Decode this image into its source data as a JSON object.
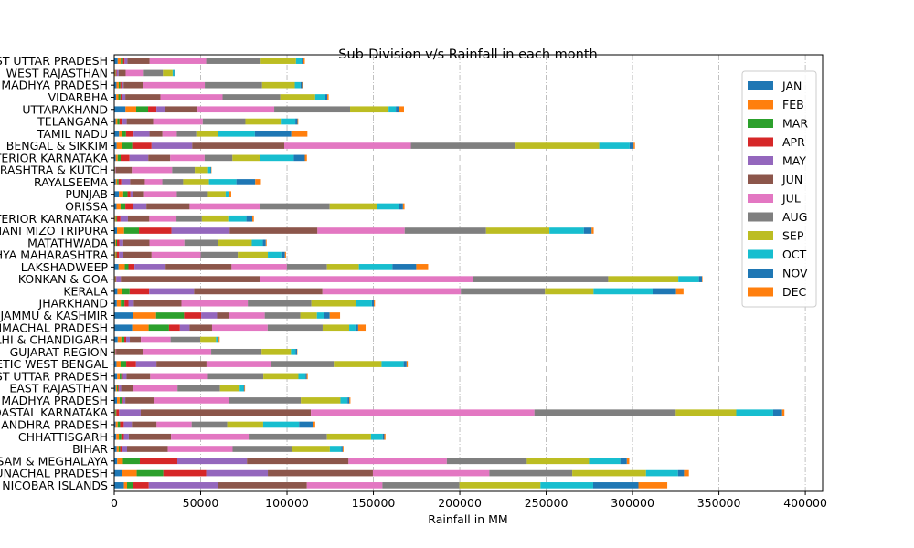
{
  "chart_data": {
    "type": "bar",
    "orientation": "horizontal",
    "stacked": true,
    "title": "Sub-Division v/s Rainfall in each month",
    "xlabel": "Rainfall in MM",
    "ylabel": "",
    "xlim": [
      0,
      410000
    ],
    "xticks": [
      0,
      50000,
      100000,
      150000,
      200000,
      250000,
      300000,
      350000,
      400000
    ],
    "grid": "x-dashdot",
    "legend_position": "top-right",
    "categories": [
      "ANDAMAN & NICOBAR ISLANDS",
      "ARUNACHAL PRADESH",
      "ASSAM & MEGHALAYA",
      "BIHAR",
      "CHHATTISGARH",
      "COASTAL ANDHRA PRADESH",
      "COASTAL KARNATAKA",
      "EAST MADHYA PRADESH",
      "EAST RAJASTHAN",
      "EAST UTTAR PRADESH",
      "GANGETIC WEST BENGAL",
      "GUJARAT REGION",
      "HARYANA DELHI & CHANDIGARH",
      "HIMACHAL PRADESH",
      "JAMMU & KASHMIR",
      "JHARKHAND",
      "KERALA",
      "KONKAN & GOA",
      "LAKSHADWEEP",
      "MADHYA MAHARASHTRA",
      "MATATHWADA",
      "NAGA MANI MIZO TRIPURA",
      "NORTH INTERIOR KARNATAKA",
      "ORISSA",
      "PUNJAB",
      "RAYALSEEMA",
      "SAURASHTRA & KUTCH",
      "SOUTH INTERIOR KARNATAKA",
      "SUB HIMALAYAN WEST BENGAL & SIKKIM",
      "TAMIL NADU",
      "TELANGANA",
      "UTTARAKHAND",
      "VIDARBHA",
      "WEST MADHYA PRADESH",
      "WEST RAJASTHAN",
      "WEST UTTAR PRADESH"
    ],
    "series": [
      {
        "name": "JAN",
        "color": "#1f77b4",
        "values": [
          5600,
          4300,
          1700,
          1400,
          1200,
          900,
          400,
          1600,
          900,
          1700,
          1300,
          200,
          2000,
          10400,
          10800,
          1500,
          1800,
          400,
          2500,
          400,
          500,
          1600,
          400,
          1300,
          2700,
          900,
          200,
          900,
          1400,
          2800,
          800,
          6500,
          1100,
          1300,
          300,
          2000
        ]
      },
      {
        "name": "FEB",
        "color": "#ff7f0e",
        "values": [
          1800,
          8700,
          3300,
          1200,
          1500,
          1100,
          300,
          1500,
          700,
          1500,
          2400,
          200,
          2100,
          9500,
          13400,
          2300,
          2800,
          200,
          3600,
          500,
          500,
          4100,
          500,
          2400,
          2500,
          800,
          200,
          1100,
          3200,
          1800,
          1000,
          6200,
          1300,
          1300,
          300,
          1800
        ]
      },
      {
        "name": "MAR",
        "color": "#2ca02c",
        "values": [
          3200,
          15400,
          9800,
          800,
          1400,
          1400,
          500,
          1300,
          600,
          900,
          3200,
          200,
          1700,
          11800,
          16200,
          2100,
          4300,
          200,
          2100,
          500,
          600,
          8600,
          600,
          2700,
          2500,
          800,
          100,
          1700,
          5800,
          2200,
          1200,
          6900,
          1200,
          900,
          300,
          1300
        ]
      },
      {
        "name": "APR",
        "color": "#d62728",
        "values": [
          9400,
          24800,
          21700,
          900,
          1500,
          2100,
          1600,
          700,
          500,
          900,
          5700,
          300,
          1100,
          6300,
          9900,
          2300,
          11300,
          400,
          3500,
          1400,
          1300,
          18800,
          2100,
          4300,
          1700,
          1600,
          200,
          5100,
          11200,
          4400,
          1800,
          4800,
          1100,
          700,
          500,
          900
        ]
      },
      {
        "name": "MAY",
        "color": "#9467bd",
        "values": [
          40200,
          35700,
          40300,
          3100,
          2800,
          4700,
          12500,
          1300,
          1300,
          2100,
          11800,
          200,
          2100,
          5600,
          9200,
          3100,
          26000,
          2600,
          18000,
          2500,
          2300,
          33700,
          4300,
          7900,
          1700,
          5100,
          300,
          10900,
          23500,
          9200,
          2400,
          5100,
          1700,
          1200,
          1100,
          1600
        ]
      },
      {
        "name": "JUN",
        "color": "#8c564b",
        "values": [
          51300,
          60800,
          58800,
          23600,
          24500,
          14300,
          98500,
          16800,
          7000,
          13700,
          29000,
          15300,
          6400,
          13000,
          7000,
          27600,
          74300,
          80700,
          38200,
          16300,
          15200,
          50800,
          12400,
          25000,
          6200,
          8500,
          9200,
          12700,
          53300,
          7500,
          15300,
          18700,
          20300,
          11200,
          4100,
          12900
        ]
      },
      {
        "name": "JUL",
        "color": "#e377c2",
        "values": [
          43700,
          67400,
          56900,
          37500,
          44900,
          20300,
          129400,
          43200,
          25600,
          33400,
          37400,
          39700,
          17200,
          32200,
          20600,
          38400,
          80100,
          123400,
          32000,
          28400,
          20200,
          50500,
          15700,
          40900,
          18900,
          10100,
          23300,
          19900,
          73300,
          8300,
          28700,
          44400,
          36000,
          35800,
          10500,
          32700
        ]
      },
      {
        "name": "AUG",
        "color": "#7f7f7f",
        "values": [
          44600,
          48000,
          46300,
          34400,
          45300,
          20600,
          81800,
          41600,
          24600,
          32100,
          36300,
          29200,
          17200,
          31800,
          20600,
          36800,
          48700,
          78000,
          23200,
          21500,
          19700,
          47100,
          14700,
          40200,
          18000,
          12100,
          13100,
          16100,
          60600,
          11300,
          24700,
          43900,
          33400,
          33200,
          11100,
          31600
        ]
      },
      {
        "name": "SEP",
        "color": "#bcbd22",
        "values": [
          46900,
          42700,
          36000,
          21900,
          25500,
          20800,
          35000,
          22900,
          11400,
          20300,
          27600,
          17000,
          9100,
          15400,
          9600,
          26000,
          28100,
          40600,
          18500,
          17400,
          19300,
          36700,
          15300,
          27300,
          10300,
          14900,
          7700,
          15900,
          48400,
          12500,
          20500,
          22300,
          20200,
          18900,
          5600,
          20400
        ]
      },
      {
        "name": "OCT",
        "color": "#17becf",
        "values": [
          30500,
          18500,
          18100,
          6600,
          6800,
          20800,
          21400,
          4100,
          2300,
          4100,
          12800,
          2600,
          1200,
          3600,
          4200,
          9000,
          34200,
          11900,
          19400,
          7800,
          6400,
          19900,
          10500,
          12800,
          1600,
          15900,
          1500,
          19600,
          17600,
          21400,
          8400,
          4200,
          5900,
          3300,
          900,
          3300
        ]
      },
      {
        "name": "NOV",
        "color": "#1f77b4",
        "values": [
          26200,
          3500,
          3800,
          800,
          900,
          7800,
          5200,
          1100,
          400,
          700,
          1700,
          900,
          300,
          1600,
          3200,
          1200,
          13600,
          1800,
          13800,
          2100,
          1700,
          4500,
          3400,
          2300,
          500,
          10900,
          300,
          6400,
          2300,
          21100,
          1300,
          1600,
          1100,
          900,
          200,
          600
        ]
      },
      {
        "name": "DEC",
        "color": "#ff7f0e",
        "values": [
          16700,
          2800,
          1400,
          500,
          700,
          1500,
          1300,
          600,
          400,
          600,
          700,
          200,
          600,
          4300,
          6000,
          600,
          4300,
          300,
          6900,
          600,
          500,
          1200,
          900,
          900,
          1100,
          3300,
          200,
          1200,
          800,
          9300,
          400,
          3100,
          800,
          500,
          200,
          1200
        ]
      }
    ]
  }
}
